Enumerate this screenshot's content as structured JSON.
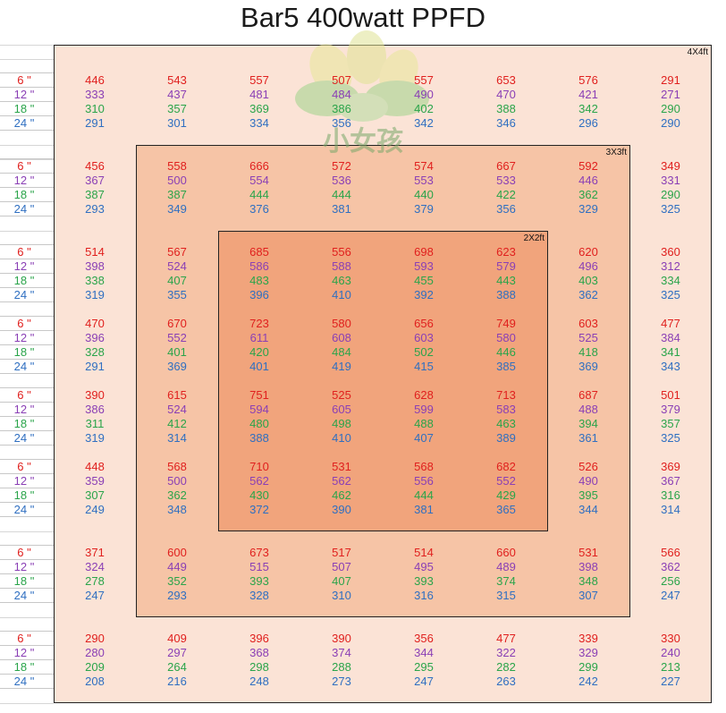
{
  "chart_data": {
    "type": "table",
    "title": "Bar5 400watt PPFD",
    "zones": [
      "4X4ft",
      "3X3ft",
      "2X2ft"
    ],
    "heights": [
      "6 \"",
      "12 \"",
      "18 \"",
      "24 \""
    ],
    "colors": {
      "6": "#e0201e",
      "12": "#8a3fb5",
      "18": "#2aa44a",
      "24": "#2f6fc1"
    },
    "rows": [
      [
        [
          446,
          333,
          310,
          291
        ],
        [
          543,
          437,
          357,
          301
        ],
        [
          557,
          481,
          369,
          334
        ],
        [
          507,
          484,
          386,
          356
        ],
        [
          557,
          490,
          402,
          342
        ],
        [
          653,
          470,
          388,
          346
        ],
        [
          576,
          421,
          342,
          296
        ],
        [
          291,
          271,
          290,
          290
        ]
      ],
      [
        [
          456,
          367,
          387,
          293
        ],
        [
          558,
          500,
          387,
          349
        ],
        [
          666,
          554,
          444,
          376
        ],
        [
          572,
          536,
          444,
          381
        ],
        [
          574,
          553,
          440,
          379
        ],
        [
          667,
          533,
          422,
          356
        ],
        [
          592,
          446,
          362,
          329
        ],
        [
          349,
          331,
          290,
          325
        ]
      ],
      [
        [
          514,
          398,
          338,
          319
        ],
        [
          567,
          524,
          407,
          355
        ],
        [
          685,
          586,
          483,
          396
        ],
        [
          556,
          588,
          463,
          410
        ],
        [
          698,
          593,
          455,
          392
        ],
        [
          623,
          579,
          443,
          388
        ],
        [
          620,
          496,
          403,
          362
        ],
        [
          360,
          312,
          334,
          325
        ]
      ],
      [
        [
          470,
          396,
          328,
          291
        ],
        [
          670,
          552,
          401,
          369
        ],
        [
          723,
          611,
          420,
          401
        ],
        [
          580,
          608,
          484,
          419
        ],
        [
          656,
          603,
          502,
          415
        ],
        [
          749,
          580,
          446,
          385
        ],
        [
          603,
          525,
          418,
          369
        ],
        [
          477,
          384,
          341,
          343
        ]
      ],
      [
        [
          390,
          386,
          311,
          319
        ],
        [
          615,
          524,
          412,
          314
        ],
        [
          751,
          594,
          480,
          388
        ],
        [
          525,
          605,
          498,
          410
        ],
        [
          628,
          599,
          488,
          407
        ],
        [
          713,
          583,
          463,
          389
        ],
        [
          687,
          488,
          394,
          361
        ],
        [
          501,
          379,
          357,
          325
        ]
      ],
      [
        [
          448,
          359,
          307,
          249
        ],
        [
          568,
          500,
          362,
          348
        ],
        [
          710,
          562,
          430,
          372
        ],
        [
          531,
          562,
          462,
          390
        ],
        [
          568,
          556,
          444,
          381
        ],
        [
          682,
          552,
          429,
          365
        ],
        [
          526,
          490,
          395,
          344
        ],
        [
          369,
          367,
          316,
          314
        ]
      ],
      [
        [
          371,
          324,
          278,
          247
        ],
        [
          600,
          449,
          352,
          293
        ],
        [
          673,
          515,
          393,
          328
        ],
        [
          517,
          507,
          407,
          310
        ],
        [
          514,
          495,
          393,
          316
        ],
        [
          660,
          489,
          374,
          315
        ],
        [
          531,
          398,
          348,
          307
        ],
        [
          566,
          362,
          256,
          247
        ]
      ],
      [
        [
          290,
          280,
          209,
          208
        ],
        [
          409,
          297,
          264,
          216
        ],
        [
          396,
          368,
          298,
          248
        ],
        [
          390,
          374,
          288,
          273
        ],
        [
          356,
          344,
          295,
          247
        ],
        [
          477,
          322,
          282,
          263
        ],
        [
          339,
          329,
          299,
          242
        ],
        [
          330,
          240,
          213,
          227
        ]
      ]
    ]
  },
  "watermark": {
    "text": "小女孩",
    "icon": "leaf-logo"
  }
}
